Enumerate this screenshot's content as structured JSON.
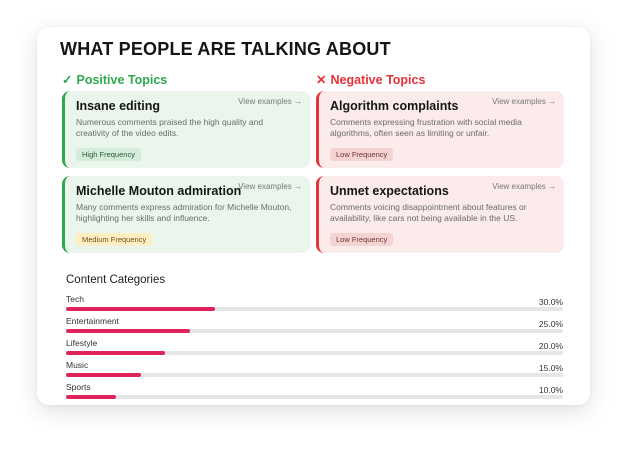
{
  "title": "WHAT PEOPLE ARE TALKING ABOUT",
  "positive": {
    "heading": "Positive Topics",
    "mark": "✓",
    "color": "#2fa84f",
    "topics": [
      {
        "name": "Insane editing",
        "view_label": "View examples →",
        "description": "Numerous comments praised the high quality and creativity of the video edits.",
        "frequency": "High Frequency"
      },
      {
        "name": "Michelle Mouton admiration",
        "view_label": "View examples →",
        "description": "Many comments express admiration for Michelle Mouton, highlighting her skills and influence.",
        "frequency": "Medium Frequency"
      }
    ]
  },
  "negative": {
    "heading": "Negative Topics",
    "mark": "✕",
    "color": "#e5323b",
    "topics": [
      {
        "name": "Algorithm complaints",
        "view_label": "View examples →",
        "description": "Comments expressing frustration with social media algorithms, often seen as limiting or unfair.",
        "frequency": "Low Frequency"
      },
      {
        "name": "Unmet expectations",
        "view_label": "View examples →",
        "description": "Comments voicing disappointment about features or availability, like cars not being available in the US.",
        "frequency": "Low Frequency"
      }
    ]
  },
  "categories": {
    "heading": "Content Categories",
    "bar_color": "#e0235a",
    "items": [
      {
        "label": "Tech",
        "value_text": "30.0%",
        "value": 30.0
      },
      {
        "label": "Entertainment",
        "value_text": "25.0%",
        "value": 25.0
      },
      {
        "label": "Lifestyle",
        "value_text": "20.0%",
        "value": 20.0
      },
      {
        "label": "Music",
        "value_text": "15.0%",
        "value": 15.0
      },
      {
        "label": "Sports",
        "value_text": "10.0%",
        "value": 10.0
      }
    ]
  }
}
